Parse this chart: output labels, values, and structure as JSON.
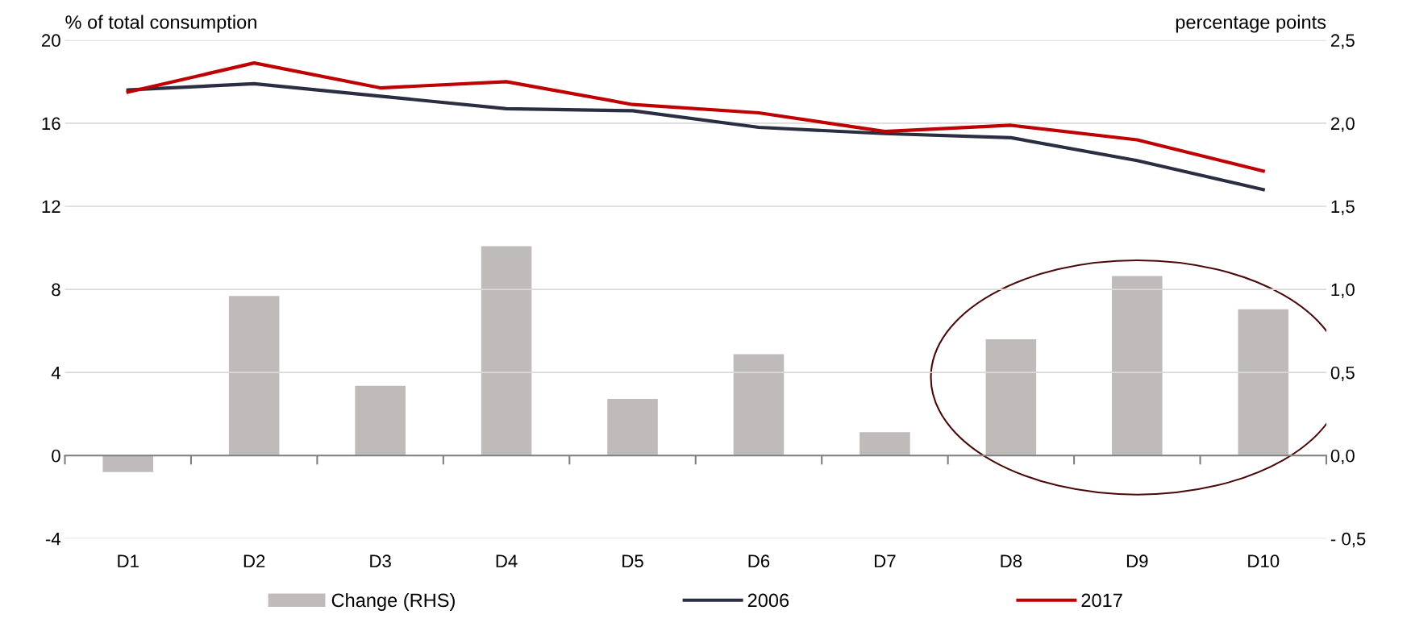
{
  "chart_data": {
    "type": "line",
    "ylabel": "% of total consumption",
    "y2label": "percentage points",
    "categories": [
      "D1",
      "D2",
      "D3",
      "D4",
      "D5",
      "D6",
      "D7",
      "D8",
      "D9",
      "D10"
    ],
    "series": [
      {
        "name": "Change (RHS)",
        "type": "bar",
        "axis": "y2",
        "color": "#bfbbba",
        "values": [
          -0.1,
          0.96,
          0.42,
          1.26,
          0.34,
          0.61,
          0.14,
          0.7,
          1.08,
          0.88
        ]
      },
      {
        "name": "2006",
        "color": "#2b2d42",
        "values": [
          17.6,
          17.9,
          17.3,
          16.7,
          16.6,
          15.8,
          15.5,
          15.3,
          14.2,
          12.8
        ]
      },
      {
        "name": "2017",
        "color": "#c00000",
        "values": [
          17.5,
          18.9,
          17.7,
          18.0,
          16.9,
          16.5,
          15.6,
          15.9,
          15.2,
          13.7
        ]
      }
    ],
    "ylim": [
      -4,
      20
    ],
    "yticks": [
      -4,
      0,
      4,
      8,
      12,
      16,
      20
    ],
    "y2lim": [
      -0.5,
      2.5
    ],
    "y2ticks": [
      {
        "value": -0.5,
        "label": "- 0,5"
      },
      {
        "value": 0,
        "label": "0,0"
      },
      {
        "value": 0.5,
        "label": "0,5"
      },
      {
        "value": 1.0,
        "label": "1,0"
      },
      {
        "value": 1.5,
        "label": "1,5"
      },
      {
        "value": 2.0,
        "label": "2,0"
      },
      {
        "value": 2.5,
        "label": "2,5"
      }
    ],
    "grid": "y",
    "legend": "bottom",
    "line_style": "solid",
    "marker": "none"
  }
}
